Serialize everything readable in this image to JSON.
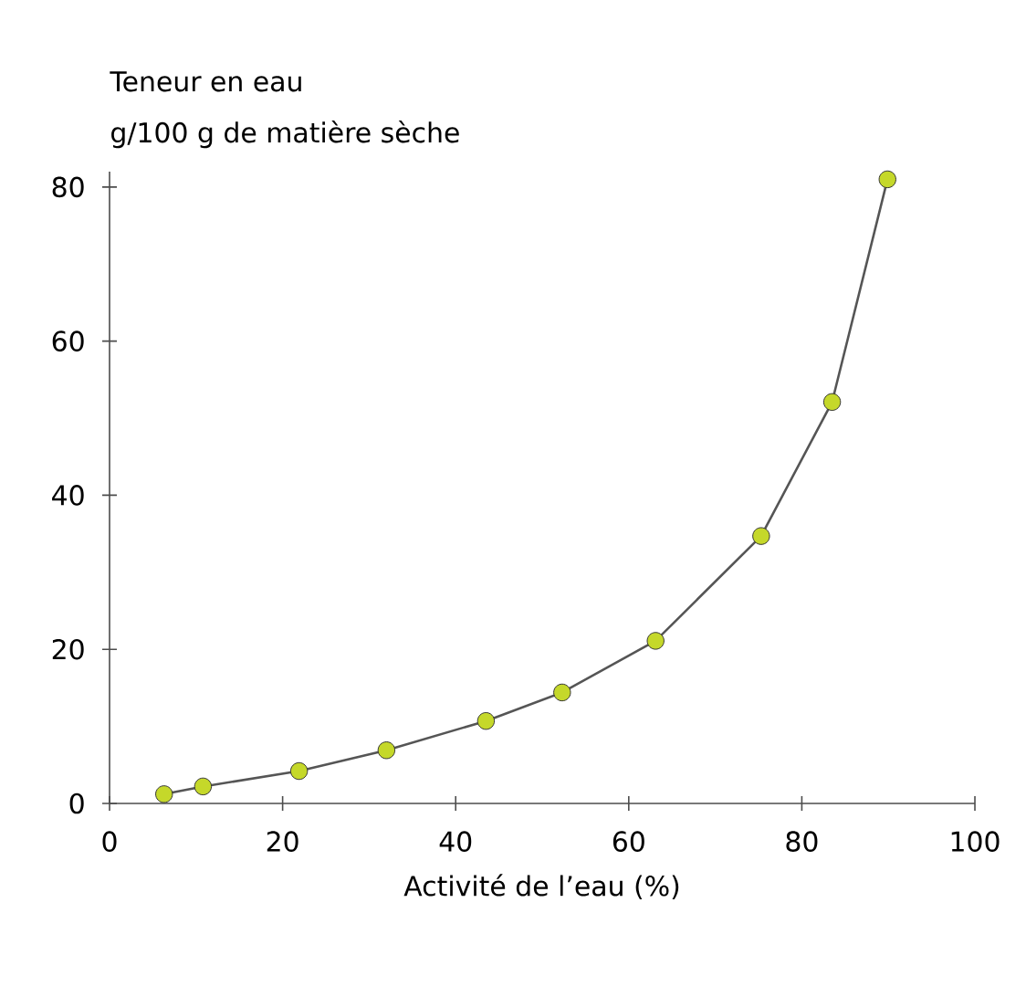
{
  "chart_data": {
    "type": "line",
    "xlabel": "Activité de l’eau (%)",
    "ylabel": "Teneur en eau",
    "annotations": [
      "g/100 g de matière sèche"
    ],
    "x": [
      6.3,
      10.8,
      21.9,
      32.0,
      43.5,
      52.3,
      63.1,
      75.3,
      83.5,
      89.9
    ],
    "series": [
      {
        "color": "#c5d82a",
        "values": [
          1.2,
          2.2,
          4.2,
          6.9,
          10.7,
          14.4,
          21.1,
          34.7,
          52.1,
          81.0
        ]
      }
    ],
    "xlim": [
      0,
      100
    ],
    "ylim": [
      0,
      82
    ],
    "xticks": [
      0,
      20,
      40,
      60,
      80,
      100
    ],
    "yticks": [
      0,
      20,
      40,
      60,
      80
    ],
    "marker": "circle",
    "line_style": "solid"
  }
}
